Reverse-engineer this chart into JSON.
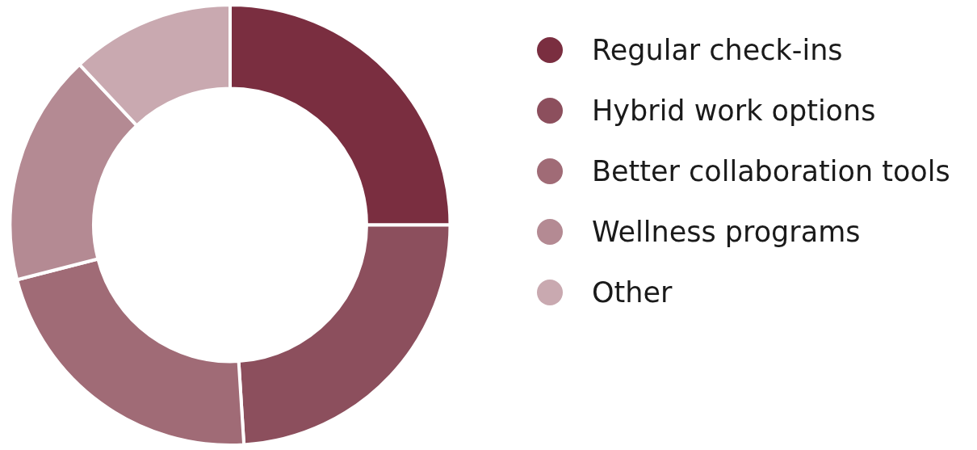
{
  "chart_data": {
    "type": "donut",
    "categories": [
      "Regular check-ins",
      "Hybrid work options",
      "Better collaboration tools",
      "Wellness programs",
      "Other"
    ],
    "values": [
      25,
      24,
      22,
      17,
      12
    ],
    "colors": [
      "#7a2e40",
      "#8c4f5d",
      "#a06b76",
      "#b48a93",
      "#c9a9b0"
    ],
    "legend": "right"
  }
}
